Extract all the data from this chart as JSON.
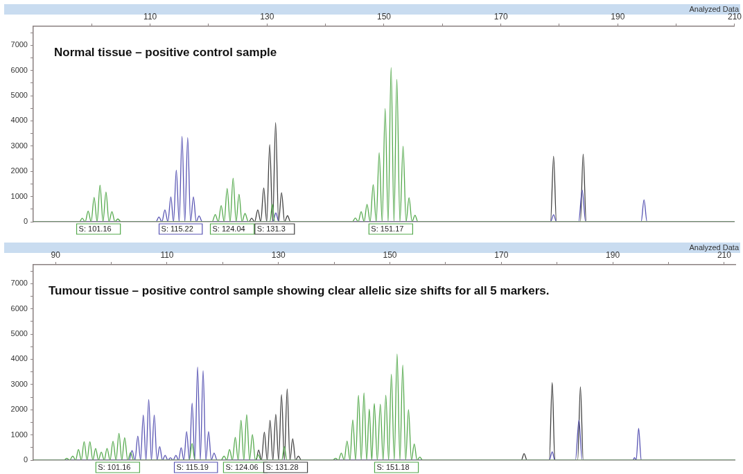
{
  "chart_data": [
    {
      "type": "line",
      "title": "Normal tissue – positive control sample",
      "subtitle": "Analyzed Data",
      "marker": "none",
      "xlim": [
        90,
        210
      ],
      "xticks": [
        {
          "value": 100,
          "label": null
        },
        110,
        {
          "value": 120,
          "label": null
        },
        130,
        {
          "value": 140,
          "label": null
        },
        150,
        {
          "value": 160,
          "label": null
        },
        170,
        {
          "value": 180,
          "label": null
        },
        190,
        {
          "value": 200,
          "label": null
        },
        210
      ],
      "ylim": [
        0,
        7750
      ],
      "yticks": [
        0,
        {
          "value": 500,
          "label": null
        },
        1000,
        {
          "value": 1500,
          "label": null
        },
        2000,
        {
          "value": 2500,
          "label": null
        },
        3000,
        {
          "value": 3500,
          "label": null
        },
        4000,
        {
          "value": 4500,
          "label": null
        },
        5000,
        {
          "value": 5500,
          "label": null
        },
        6000,
        {
          "value": 6500,
          "label": null
        },
        7000,
        {
          "value": 7500,
          "label": null
        }
      ],
      "series": [
        {
          "color": "#52a84a",
          "x": [
            90,
            97.9,
            98.37,
            98.88,
            99.39,
            99.9,
            100.41,
            100.92,
            101.42,
            101.93,
            102.44,
            102.95,
            103.46,
            103.97,
            104.47,
            105,
            120.6,
            121.14,
            121.65,
            122.15,
            122.66,
            123.17,
            123.68,
            124.19,
            124.7,
            125.2,
            125.71,
            126.22,
            126.8,
            130.5,
            130.9,
            131.3,
            144.6,
            145.1,
            145.6,
            146.1,
            146.6,
            147.1,
            147.63,
            148.16,
            148.67,
            149.18,
            149.69,
            150.2,
            150.71,
            151.22,
            151.71,
            152.2,
            152.73,
            153.27,
            153.78,
            154.29,
            154.8,
            155.31,
            155.8,
            210
          ],
          "values": [
            0,
            0,
            140,
            0,
            425,
            0,
            965,
            0,
            1450,
            0,
            1180,
            0,
            400,
            0,
            110,
            0,
            0,
            285,
            0,
            640,
            0,
            1320,
            0,
            1730,
            0,
            1090,
            0,
            330,
            0,
            0,
            700,
            0,
            0,
            150,
            0,
            400,
            0,
            690,
            0,
            1470,
            0,
            2740,
            0,
            4490,
            0,
            6120,
            0,
            5650,
            0,
            3000,
            0,
            950,
            0,
            260,
            0,
            0
          ]
        },
        {
          "color": "#5652b2",
          "x": [
            90,
            111,
            111.5,
            112.01,
            112.52,
            113.03,
            113.54,
            114,
            114.47,
            114.96,
            115.45,
            115.93,
            116.42,
            116.91,
            117.4,
            117.88,
            118.37,
            118.9,
            131,
            131.5,
            132,
            178.5,
            179.02,
            179.5,
            183.3,
            183.92,
            184.5,
            194,
            194.49,
            195,
            210
          ],
          "values": [
            0,
            0,
            190,
            0,
            470,
            0,
            985,
            0,
            2050,
            0,
            3390,
            0,
            3340,
            0,
            985,
            0,
            230,
            0,
            0,
            350,
            0,
            0,
            280,
            0,
            0,
            1250,
            0,
            0,
            870,
            0,
            0
          ]
        },
        {
          "color": "#3e3e3e",
          "x": [
            90,
            126.9,
            127.36,
            127.88,
            128.41,
            128.92,
            129.43,
            129.94,
            130.45,
            130.96,
            131.46,
            131.97,
            132.48,
            132.99,
            133.5,
            134,
            178.5,
            179.02,
            179.5,
            183.6,
            184.08,
            184.6,
            210
          ],
          "values": [
            0,
            0,
            140,
            0,
            470,
            0,
            1340,
            0,
            3060,
            0,
            3930,
            0,
            1150,
            0,
            240,
            0,
            0,
            2600,
            0,
            0,
            2680,
            0,
            0
          ]
        }
      ],
      "annotations": [
        "S: 101.16",
        "S: 115.22",
        "S: 124.04",
        "S: 131.3",
        "S: 151.17"
      ]
    },
    {
      "type": "line",
      "title": "Tumour tissue – positive control sample showing clear allelic size shifts for all 5 markers.",
      "subtitle": "Analyzed Data",
      "marker": "none",
      "xlim": [
        86,
        212
      ],
      "xticks": [
        90,
        {
          "value": 100,
          "label": null
        },
        110,
        {
          "value": 120,
          "label": null
        },
        130,
        {
          "value": 140,
          "label": null
        },
        150,
        {
          "value": 160,
          "label": null
        },
        170,
        {
          "value": 180,
          "label": null
        },
        190,
        {
          "value": 200,
          "label": null
        },
        210
      ],
      "ylim": [
        0,
        7750
      ],
      "yticks": [
        0,
        {
          "value": 500,
          "label": null
        },
        1000,
        {
          "value": 1500,
          "label": null
        },
        2000,
        {
          "value": 2500,
          "label": null
        },
        3000,
        {
          "value": 3500,
          "label": null
        },
        4000,
        {
          "value": 4500,
          "label": null
        },
        5000,
        {
          "value": 5500,
          "label": null
        },
        6000,
        {
          "value": 6500,
          "label": null
        },
        7000,
        {
          "value": 7500,
          "label": null
        }
      ],
      "series": [
        {
          "color": "#52a84a",
          "x": [
            86,
            91.5,
            92.01,
            92.55,
            93.08,
            93.6,
            94.11,
            94.62,
            95.13,
            95.65,
            96.16,
            96.68,
            97.19,
            97.7,
            98.21,
            98.73,
            99.24,
            99.78,
            100.31,
            100.85,
            101.38,
            101.89,
            102.4,
            102.94,
            103.47,
            104,
            114,
            114.5,
            115,
            119.7,
            120.24,
            120.73,
            121.22,
            121.74,
            122.25,
            122.77,
            123.28,
            123.79,
            124.3,
            124.82,
            125.33,
            125.85,
            126.36,
            126.9,
            130.6,
            131.06,
            131.5,
            139.7,
            140.26,
            140.77,
            141.28,
            141.8,
            142.31,
            142.83,
            143.34,
            143.85,
            144.36,
            144.86,
            145.35,
            145.83,
            146.3,
            146.75,
            147.2,
            147.74,
            148.28,
            148.78,
            149.27,
            149.77,
            150.26,
            150.78,
            151.29,
            151.8,
            152.31,
            152.83,
            153.34,
            153.86,
            154.37,
            154.87,
            155.36,
            155.9,
            212
          ],
          "values": [
            0,
            0,
            70,
            0,
            160,
            0,
            425,
            0,
            730,
            0,
            730,
            0,
            465,
            0,
            320,
            0,
            465,
            0,
            750,
            0,
            1060,
            0,
            890,
            0,
            300,
            0,
            0,
            660,
            0,
            0,
            160,
            0,
            420,
            0,
            900,
            0,
            1580,
            0,
            1800,
            0,
            1010,
            0,
            210,
            0,
            0,
            540,
            0,
            0,
            70,
            0,
            280,
            0,
            760,
            0,
            1600,
            0,
            2570,
            0,
            2670,
            0,
            2020,
            0,
            2250,
            0,
            2220,
            0,
            2580,
            0,
            3410,
            0,
            4210,
            0,
            3770,
            0,
            2000,
            0,
            640,
            0,
            120,
            0,
            0
          ]
        },
        {
          "color": "#5652b2",
          "x": [
            86,
            103.2,
            103.73,
            104.25,
            104.76,
            105.25,
            105.74,
            106.23,
            106.72,
            107.2,
            107.71,
            108.2,
            108.69,
            109.18,
            109.67,
            110.15,
            110.62,
            111.1,
            111.6,
            112.07,
            112.54,
            113.03,
            113.52,
            114.02,
            114.51,
            115,
            115.49,
            115.98,
            116.48,
            116.97,
            117.46,
            117.95,
            118.44,
            119,
            178.6,
            179.13,
            179.6,
            183.3,
            183.93,
            184.5,
            193.6,
            193.9,
            194.2,
            194.64,
            195.1,
            212
          ],
          "values": [
            0,
            0,
            380,
            0,
            950,
            0,
            1790,
            0,
            2410,
            0,
            1790,
            0,
            540,
            0,
            190,
            0,
            95,
            0,
            190,
            0,
            490,
            0,
            1130,
            0,
            2260,
            0,
            3690,
            0,
            3550,
            0,
            1130,
            0,
            280,
            0,
            0,
            330,
            0,
            0,
            1590,
            0,
            0,
            100,
            0,
            1260,
            0,
            0
          ]
        },
        {
          "color": "#3e3e3e",
          "x": [
            86,
            126,
            126.44,
            126.96,
            127.47,
            127.98,
            128.49,
            129,
            129.52,
            130.03,
            130.55,
            131.06,
            131.57,
            132.06,
            132.56,
            133.07,
            133.58,
            134.1,
            173.6,
            174.08,
            174.6,
            178.6,
            179.13,
            179.6,
            183.7,
            184.19,
            184.7,
            212
          ],
          "values": [
            0,
            0,
            400,
            0,
            1110,
            0,
            1580,
            0,
            1820,
            0,
            2600,
            0,
            2830,
            0,
            850,
            0,
            160,
            0,
            0,
            260,
            0,
            0,
            3080,
            0,
            0,
            2910,
            0,
            0
          ]
        }
      ],
      "annotations": [
        "S: 101.16",
        "S: 115.19",
        "S: 124.06",
        "S: 131.28",
        "S: 151.18"
      ]
    }
  ]
}
